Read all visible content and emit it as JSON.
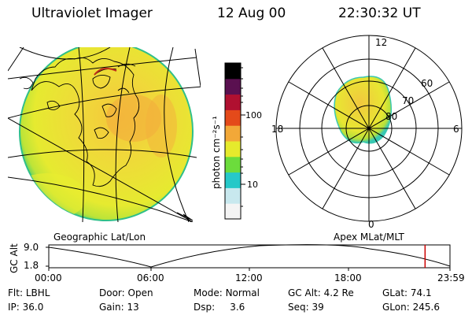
{
  "header": {
    "title": "Ultraviolet Imager",
    "date": "12 Aug 00",
    "time": "22:30:32 UT"
  },
  "colorbar": {
    "unit_label": "photon cm⁻²s⁻¹",
    "tick_labels": [
      "100",
      "10"
    ],
    "colors": [
      "#f4f4f4",
      "#c8e8ee",
      "#26c8c8",
      "#6cdc3c",
      "#e6ea2c",
      "#f2a838",
      "#e44a1a",
      "#b01030",
      "#5a1050",
      "#000000"
    ]
  },
  "polar_plot": {
    "mlt_labels": {
      "top": "12",
      "left": "18",
      "right": "6",
      "bottom": "0"
    },
    "lat_labels": [
      "60",
      "70",
      "80"
    ]
  },
  "orbit": {
    "left_label": "Geographic Lat/Lon",
    "right_label": "Apex MLat/MLT",
    "axis_label": "GC Alt",
    "y_ticks": [
      "9.0",
      "1.8"
    ],
    "x_ticks": [
      "00:00",
      "06:00",
      "12:00",
      "18:00",
      "23:59"
    ],
    "current_time_hours": 22.51,
    "marker_color": "#cc0000"
  },
  "status": {
    "row1": [
      {
        "label": "Flt:",
        "value": "LBHL"
      },
      {
        "label": "Door:",
        "value": "Open"
      },
      {
        "label": "Mode:",
        "value": "Normal"
      },
      {
        "label": "GC Alt:",
        "value": "4.2 Re"
      },
      {
        "label": "GLat:",
        "value": "74.1"
      }
    ],
    "row2": [
      {
        "label": "IP:",
        "value": "36.0"
      },
      {
        "label": "Gain:",
        "value": "13"
      },
      {
        "label": "Dsp:",
        "value": "3.6"
      },
      {
        "label": "Seq:",
        "value": "39"
      },
      {
        "label": "GLon:",
        "value": "245.6"
      }
    ]
  }
}
